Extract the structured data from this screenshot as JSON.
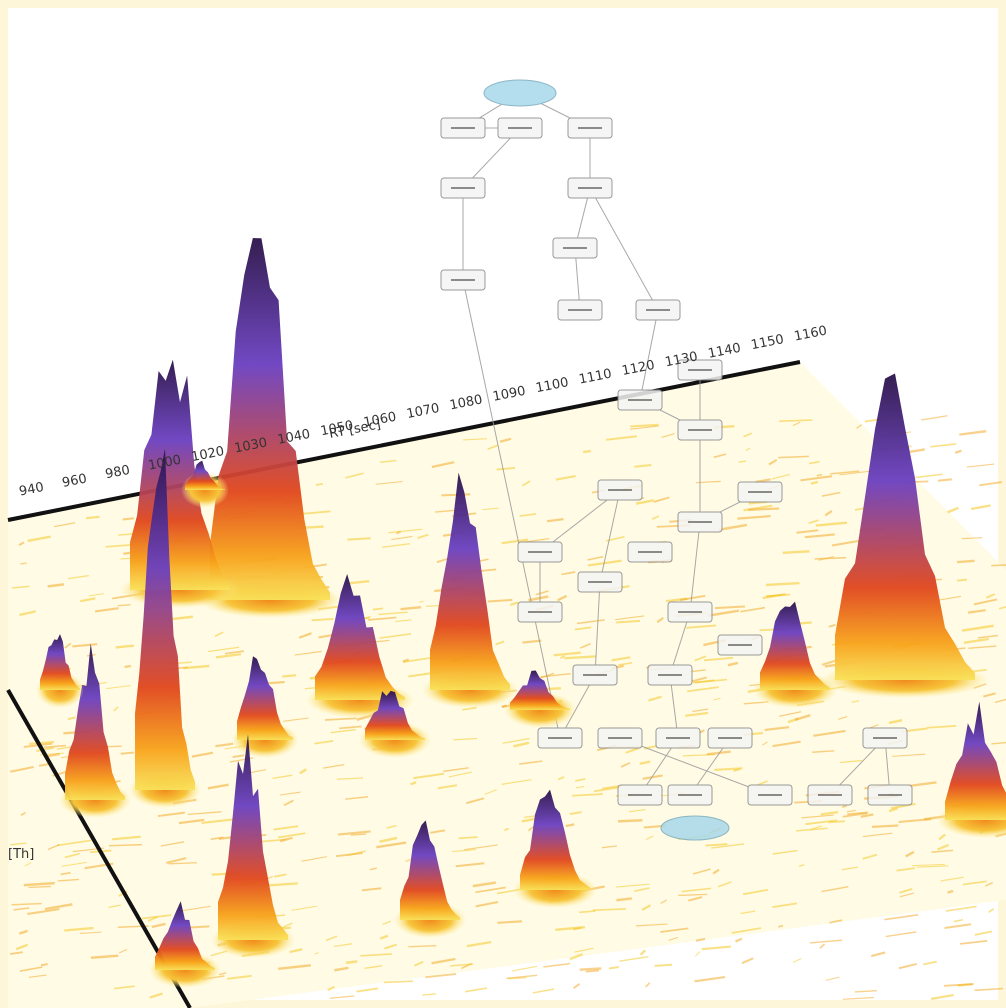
{
  "axes": {
    "rt_label": "RT [sec]",
    "mz_label": "[Th]",
    "rt_ticks": [
      "940",
      "960",
      "980",
      "1000",
      "1020",
      "1030",
      "1040",
      "1050",
      "1060",
      "1070",
      "1080",
      "1090",
      "1100",
      "1110",
      "1120",
      "1130",
      "1140",
      "1150",
      "1160"
    ]
  }
}
